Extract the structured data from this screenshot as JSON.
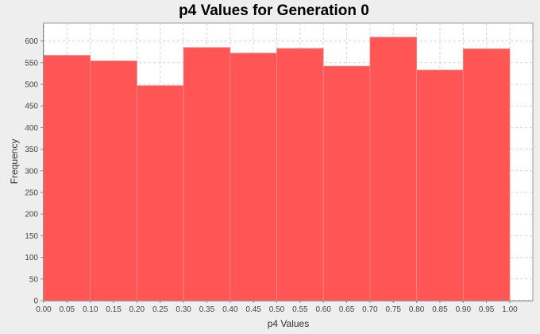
{
  "chart_data": {
    "type": "bar",
    "title": "p4 Values for Generation 0",
    "xlabel": "p4 Values",
    "ylabel": "Frequency",
    "xlim": [
      0.0,
      1.05
    ],
    "ylim": [
      0,
      640
    ],
    "x_ticks": [
      "0.00",
      "0.05",
      "0.10",
      "0.15",
      "0.20",
      "0.25",
      "0.30",
      "0.35",
      "0.40",
      "0.45",
      "0.50",
      "0.55",
      "0.60",
      "0.65",
      "0.70",
      "0.75",
      "0.80",
      "0.85",
      "0.90",
      "0.95",
      "1.00"
    ],
    "y_ticks": [
      "0",
      "50",
      "100",
      "150",
      "200",
      "250",
      "300",
      "350",
      "400",
      "450",
      "500",
      "550",
      "600"
    ],
    "bins": [
      {
        "start": 0.0,
        "end": 0.1,
        "value": 567
      },
      {
        "start": 0.1,
        "end": 0.2,
        "value": 554
      },
      {
        "start": 0.2,
        "end": 0.3,
        "value": 497
      },
      {
        "start": 0.3,
        "end": 0.4,
        "value": 585
      },
      {
        "start": 0.4,
        "end": 0.5,
        "value": 572
      },
      {
        "start": 0.5,
        "end": 0.6,
        "value": 583
      },
      {
        "start": 0.6,
        "end": 0.7,
        "value": 542
      },
      {
        "start": 0.7,
        "end": 0.8,
        "value": 609
      },
      {
        "start": 0.8,
        "end": 0.9,
        "value": 533
      },
      {
        "start": 0.9,
        "end": 1.0,
        "value": 582
      }
    ],
    "grid": true,
    "legend": "none",
    "colors": {
      "bar": "#ff5555",
      "plot_background": "#ffffff",
      "page_background": "#eeeeee"
    }
  }
}
